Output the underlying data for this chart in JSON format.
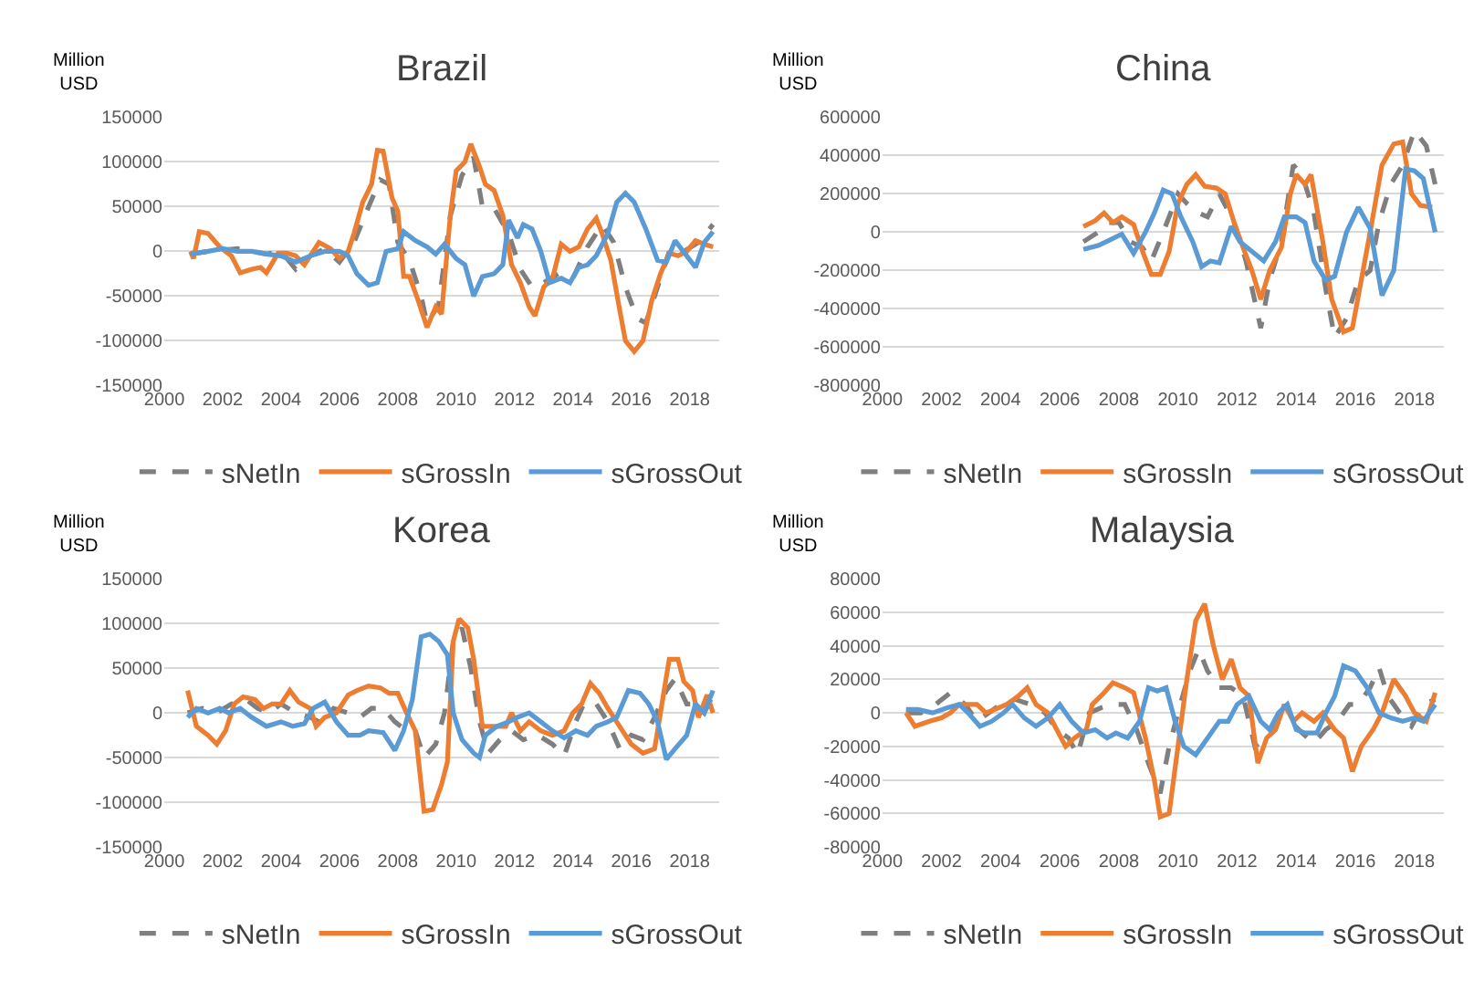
{
  "chart_data": [
    {
      "type": "line",
      "title": "Brazil",
      "ylabel": "Million\nUSD",
      "xlim": [
        2000,
        2019
      ],
      "xticks": [
        2000,
        2002,
        2004,
        2006,
        2008,
        2010,
        2012,
        2014,
        2016,
        2018
      ],
      "ylim": [
        -150000,
        150000
      ],
      "yticks": [
        -150000,
        -100000,
        -50000,
        0,
        50000,
        100000,
        150000
      ],
      "grid": "y",
      "legend": "bottom",
      "series": [
        {
          "name": "sNetIn",
          "color": "#7f7f7f",
          "line_style": "dashed",
          "x": [
            2000.9,
            2001.5,
            2002.5,
            2003.5,
            2004.0,
            2004.5,
            2005.0,
            2005.5,
            2006.0,
            2006.5,
            2007.0,
            2007.4,
            2007.7,
            2008.0,
            2008.4,
            2008.8,
            2009.0,
            2009.4,
            2009.8,
            2010.2,
            2010.6,
            2010.9,
            2011.3,
            2011.8,
            2012.2,
            2012.6,
            2013.0,
            2013.5,
            2014.0,
            2014.5,
            2015.0,
            2015.4,
            2015.8,
            2016.2,
            2016.5,
            2016.9,
            2017.3,
            2017.8,
            2018.3,
            2018.8
          ],
          "values": [
            -3000,
            0,
            3000,
            -3000,
            0,
            -20000,
            -5000,
            3000,
            -12000,
            10000,
            50000,
            80000,
            75000,
            10000,
            -10000,
            -50000,
            -80000,
            -60000,
            40000,
            85000,
            105000,
            50000,
            48000,
            20000,
            -20000,
            -40000,
            -35000,
            -25000,
            -30000,
            5000,
            30000,
            10000,
            -40000,
            -75000,
            -80000,
            -40000,
            0,
            0,
            10000,
            30000
          ]
        },
        {
          "name": "sGrossIn",
          "color": "#ed7d31",
          "line_style": "solid",
          "x": [
            2000.9,
            2001.0,
            2001.2,
            2001.5,
            2001.9,
            2002.3,
            2002.6,
            2003.0,
            2003.3,
            2003.5,
            2003.9,
            2004.2,
            2004.5,
            2004.8,
            2005.0,
            2005.3,
            2005.7,
            2006.0,
            2006.3,
            2006.5,
            2006.8,
            2007.1,
            2007.3,
            2007.5,
            2007.8,
            2008.0,
            2008.2,
            2008.4,
            2008.7,
            2009.0,
            2009.3,
            2009.5,
            2009.8,
            2010.0,
            2010.3,
            2010.5,
            2010.8,
            2011.0,
            2011.3,
            2011.6,
            2011.9,
            2012.2,
            2012.5,
            2012.7,
            2013.0,
            2013.3,
            2013.6,
            2013.9,
            2014.2,
            2014.5,
            2014.8,
            2015.0,
            2015.3,
            2015.6,
            2015.8,
            2016.1,
            2016.4,
            2016.7,
            2017.0,
            2017.3,
            2017.6,
            2017.9,
            2018.2,
            2018.5,
            2018.8
          ],
          "values": [
            0,
            -8000,
            22000,
            20000,
            5000,
            -5000,
            -24000,
            -20000,
            -18000,
            -24000,
            -2000,
            -2000,
            -5000,
            -15000,
            -5000,
            10000,
            3000,
            -8000,
            0,
            20000,
            55000,
            75000,
            113000,
            112000,
            60000,
            45000,
            -28000,
            -28000,
            -55000,
            -85000,
            -62000,
            -70000,
            40000,
            90000,
            100000,
            120000,
            95000,
            75000,
            68000,
            40000,
            -15000,
            -35000,
            -62000,
            -72000,
            -40000,
            -30000,
            8000,
            0,
            5000,
            25000,
            37000,
            20000,
            -10000,
            -65000,
            -100000,
            -112000,
            -100000,
            -55000,
            -25000,
            -2000,
            -5000,
            0,
            12000,
            8000,
            5000
          ]
        },
        {
          "name": "sGrossOut",
          "color": "#5b9bd5",
          "line_style": "solid",
          "x": [
            2000.9,
            2001.5,
            2002.0,
            2002.5,
            2003.0,
            2003.5,
            2004.0,
            2004.5,
            2005.0,
            2005.5,
            2006.0,
            2006.3,
            2006.6,
            2007.0,
            2007.3,
            2007.6,
            2008.0,
            2008.2,
            2008.6,
            2009.0,
            2009.3,
            2009.6,
            2010.0,
            2010.3,
            2010.6,
            2010.9,
            2011.3,
            2011.6,
            2011.8,
            2012.1,
            2012.3,
            2012.6,
            2012.9,
            2013.2,
            2013.6,
            2013.9,
            2014.2,
            2014.5,
            2014.8,
            2015.2,
            2015.5,
            2015.8,
            2016.1,
            2016.5,
            2016.9,
            2017.2,
            2017.5,
            2017.9,
            2018.2,
            2018.5,
            2018.8
          ],
          "values": [
            -3000,
            0,
            3000,
            0,
            0,
            -3000,
            -5000,
            -12000,
            -5000,
            0,
            0,
            -5000,
            -25000,
            -38000,
            -35000,
            0,
            3000,
            22000,
            12000,
            5000,
            -3000,
            8000,
            -8000,
            -15000,
            -50000,
            -28000,
            -25000,
            -15000,
            35000,
            15000,
            30000,
            25000,
            0,
            -35000,
            -30000,
            -35000,
            -18000,
            -15000,
            -5000,
            20000,
            55000,
            65000,
            55000,
            25000,
            -10000,
            -12000,
            12000,
            -5000,
            -18000,
            10000,
            22000
          ]
        }
      ]
    },
    {
      "type": "line",
      "title": "China",
      "ylabel": "Million\nUSD",
      "xlim": [
        2000,
        2019
      ],
      "xticks": [
        2000,
        2002,
        2004,
        2006,
        2008,
        2010,
        2012,
        2014,
        2016,
        2018
      ],
      "ylim": [
        -800000,
        600000
      ],
      "yticks": [
        -800000,
        -600000,
        -400000,
        -200000,
        0,
        200000,
        400000,
        600000
      ],
      "grid": "y",
      "legend": "bottom",
      "series": [
        {
          "name": "sNetIn",
          "color": "#7f7f7f",
          "line_style": "dashed",
          "x": [
            2006.8,
            2007.3,
            2007.6,
            2008.0,
            2008.4,
            2008.8,
            2009.1,
            2009.5,
            2010.0,
            2010.3,
            2010.7,
            2011.0,
            2011.4,
            2011.9,
            2012.3,
            2012.8,
            2013.1,
            2013.5,
            2013.9,
            2014.2,
            2014.6,
            2015.0,
            2015.3,
            2015.7,
            2016.1,
            2016.5,
            2016.8,
            2017.2,
            2017.6,
            2018.0,
            2018.4,
            2018.7
          ],
          "values": [
            -50000,
            0,
            50000,
            50000,
            -50000,
            -80000,
            -150000,
            0,
            200000,
            150000,
            100000,
            80000,
            200000,
            50000,
            -150000,
            -500000,
            -250000,
            -50000,
            350000,
            300000,
            100000,
            -300000,
            -550000,
            -450000,
            -250000,
            -200000,
            50000,
            250000,
            350000,
            530000,
            450000,
            250000
          ]
        },
        {
          "name": "sGrossIn",
          "color": "#ed7d31",
          "line_style": "solid",
          "x": [
            2006.8,
            2007.2,
            2007.5,
            2007.8,
            2008.1,
            2008.5,
            2008.8,
            2009.1,
            2009.4,
            2009.7,
            2010.0,
            2010.3,
            2010.6,
            2010.9,
            2011.3,
            2011.6,
            2011.9,
            2012.2,
            2012.5,
            2012.8,
            2013.1,
            2013.5,
            2013.8,
            2014.0,
            2014.3,
            2014.5,
            2014.9,
            2015.2,
            2015.6,
            2015.9,
            2016.2,
            2016.5,
            2016.9,
            2017.3,
            2017.6,
            2017.9,
            2018.2,
            2018.6
          ],
          "values": [
            30000,
            60000,
            100000,
            50000,
            80000,
            40000,
            -100000,
            -220000,
            -220000,
            -100000,
            150000,
            250000,
            300000,
            240000,
            230000,
            200000,
            50000,
            -80000,
            -200000,
            -350000,
            -200000,
            -80000,
            200000,
            300000,
            250000,
            300000,
            -50000,
            -350000,
            -520000,
            -500000,
            -250000,
            0,
            350000,
            460000,
            470000,
            200000,
            140000,
            130000
          ]
        },
        {
          "name": "sGrossOut",
          "color": "#5b9bd5",
          "line_style": "solid",
          "x": [
            2006.8,
            2007.3,
            2007.7,
            2008.1,
            2008.5,
            2008.9,
            2009.2,
            2009.5,
            2009.8,
            2010.1,
            2010.5,
            2010.8,
            2011.1,
            2011.4,
            2011.8,
            2012.1,
            2012.5,
            2012.9,
            2013.3,
            2013.6,
            2014.0,
            2014.3,
            2014.6,
            2015.0,
            2015.3,
            2015.7,
            2016.1,
            2016.5,
            2016.9,
            2017.3,
            2017.7,
            2018.0,
            2018.3,
            2018.7
          ],
          "values": [
            -90000,
            -70000,
            -40000,
            -10000,
            -110000,
            0,
            100000,
            220000,
            200000,
            80000,
            -50000,
            -180000,
            -150000,
            -160000,
            30000,
            -50000,
            -100000,
            -150000,
            -50000,
            80000,
            80000,
            50000,
            -150000,
            -250000,
            -230000,
            0,
            130000,
            20000,
            -330000,
            -200000,
            330000,
            320000,
            280000,
            0
          ]
        }
      ]
    },
    {
      "type": "line",
      "title": "Korea",
      "ylabel": "Million\nUSD",
      "xlim": [
        2000,
        2019
      ],
      "xticks": [
        2000,
        2002,
        2004,
        2006,
        2008,
        2010,
        2012,
        2014,
        2016,
        2018
      ],
      "ylim": [
        -150000,
        150000
      ],
      "yticks": [
        -150000,
        -100000,
        -50000,
        0,
        50000,
        100000,
        150000
      ],
      "grid": "y",
      "legend": "bottom",
      "series": [
        {
          "name": "sNetIn",
          "color": "#7f7f7f",
          "line_style": "dashed",
          "x": [
            2000.8,
            2001.3,
            2001.8,
            2002.3,
            2002.8,
            2003.2,
            2003.6,
            2004.0,
            2004.5,
            2005.0,
            2005.3,
            2005.8,
            2006.3,
            2006.7,
            2007.1,
            2007.5,
            2007.9,
            2008.3,
            2008.6,
            2008.9,
            2009.3,
            2009.6,
            2009.9,
            2010.2,
            2010.5,
            2010.8,
            2011.1,
            2011.5,
            2011.9,
            2012.3,
            2012.8,
            2013.3,
            2013.7,
            2014.1,
            2014.4,
            2014.8,
            2015.2,
            2015.6,
            2016.0,
            2016.4,
            2016.8,
            2017.2,
            2017.5,
            2017.9,
            2018.2,
            2018.5,
            2018.8
          ],
          "values": [
            0,
            5000,
            0,
            10000,
            15000,
            5000,
            0,
            10000,
            0,
            -5000,
            -10000,
            5000,
            0,
            -5000,
            5000,
            5000,
            -10000,
            -20000,
            -20000,
            -50000,
            -35000,
            0,
            80000,
            95000,
            50000,
            -10000,
            -45000,
            -30000,
            -20000,
            -30000,
            -25000,
            -35000,
            -48000,
            -10000,
            12000,
            10000,
            -10000,
            -40000,
            -25000,
            -30000,
            -5000,
            25000,
            38000,
            10000,
            10000,
            0,
            20000
          ]
        },
        {
          "name": "sGrossIn",
          "color": "#ed7d31",
          "line_style": "solid",
          "x": [
            2000.8,
            2001.1,
            2001.5,
            2001.8,
            2002.1,
            2002.4,
            2002.7,
            2003.1,
            2003.4,
            2003.7,
            2004.0,
            2004.3,
            2004.6,
            2005.0,
            2005.2,
            2005.5,
            2005.9,
            2006.3,
            2006.6,
            2007.0,
            2007.4,
            2007.7,
            2008.0,
            2008.3,
            2008.6,
            2008.9,
            2009.2,
            2009.5,
            2009.7,
            2009.9,
            2010.1,
            2010.4,
            2010.6,
            2010.9,
            2011.3,
            2011.7,
            2011.9,
            2012.2,
            2012.5,
            2012.9,
            2013.3,
            2013.7,
            2014.0,
            2014.3,
            2014.6,
            2014.9,
            2015.2,
            2015.6,
            2016.0,
            2016.4,
            2016.8,
            2017.0,
            2017.3,
            2017.6,
            2017.8,
            2018.1,
            2018.3,
            2018.6,
            2018.8
          ],
          "values": [
            25000,
            -15000,
            -25000,
            -35000,
            -20000,
            10000,
            18000,
            15000,
            5000,
            10000,
            10000,
            25000,
            12000,
            5000,
            -15000,
            -5000,
            0,
            20000,
            25000,
            30000,
            28000,
            22000,
            22000,
            0,
            -20000,
            -110000,
            -108000,
            -80000,
            -55000,
            80000,
            105000,
            95000,
            60000,
            -15000,
            -15000,
            -15000,
            0,
            -20000,
            -10000,
            -20000,
            -25000,
            -20000,
            0,
            10000,
            33000,
            22000,
            5000,
            -15000,
            -35000,
            -45000,
            -40000,
            0,
            60000,
            60000,
            35000,
            25000,
            -5000,
            20000,
            0
          ]
        },
        {
          "name": "sGrossOut",
          "color": "#5b9bd5",
          "line_style": "solid",
          "x": [
            2000.8,
            2001.1,
            2001.5,
            2001.9,
            2002.2,
            2002.6,
            2003.0,
            2003.5,
            2004.0,
            2004.4,
            2004.8,
            2005.1,
            2005.5,
            2005.9,
            2006.3,
            2006.7,
            2007.0,
            2007.5,
            2007.9,
            2008.2,
            2008.5,
            2008.8,
            2009.1,
            2009.4,
            2009.7,
            2009.9,
            2010.2,
            2010.6,
            2010.8,
            2011.0,
            2011.4,
            2011.8,
            2012.1,
            2012.5,
            2012.9,
            2013.3,
            2013.7,
            2014.1,
            2014.5,
            2014.8,
            2015.2,
            2015.5,
            2015.9,
            2016.3,
            2016.6,
            2016.9,
            2017.2,
            2017.5,
            2017.9,
            2018.2,
            2018.5,
            2018.8
          ],
          "values": [
            -5000,
            5000,
            0,
            5000,
            0,
            5000,
            -5000,
            -15000,
            -10000,
            -15000,
            -12000,
            5000,
            12000,
            -10000,
            -25000,
            -25000,
            -20000,
            -22000,
            -42000,
            -20000,
            15000,
            85000,
            88000,
            80000,
            65000,
            0,
            -30000,
            -45000,
            -50000,
            -25000,
            -15000,
            -10000,
            -5000,
            0,
            -10000,
            -20000,
            -28000,
            -20000,
            -25000,
            -15000,
            -10000,
            -5000,
            25000,
            22000,
            10000,
            -10000,
            -52000,
            -40000,
            -25000,
            10000,
            0,
            25000
          ]
        }
      ]
    },
    {
      "type": "line",
      "title": "Malaysia",
      "ylabel": "Million\nUSD",
      "xlim": [
        2000,
        2019
      ],
      "xticks": [
        2000,
        2002,
        2004,
        2006,
        2008,
        2010,
        2012,
        2014,
        2016,
        2018
      ],
      "ylim": [
        -80000,
        80000
      ],
      "yticks": [
        -80000,
        -60000,
        -40000,
        -20000,
        0,
        20000,
        40000,
        60000,
        80000
      ],
      "grid": "y",
      "legend": "bottom",
      "series": [
        {
          "name": "sNetIn",
          "color": "#7f7f7f",
          "line_style": "dashed",
          "x": [
            2000.8,
            2001.3,
            2001.8,
            2002.3,
            2002.8,
            2003.2,
            2003.6,
            2004.0,
            2004.5,
            2005.0,
            2005.5,
            2005.9,
            2006.3,
            2006.6,
            2007.0,
            2007.4,
            2007.8,
            2008.2,
            2008.6,
            2009.0,
            2009.4,
            2009.7,
            2010.0,
            2010.4,
            2010.7,
            2011.0,
            2011.4,
            2011.8,
            2012.2,
            2012.6,
            2013.0,
            2013.4,
            2013.8,
            2014.2,
            2014.6,
            2015.0,
            2015.4,
            2015.8,
            2016.1,
            2016.5,
            2016.8,
            2017.1,
            2017.5,
            2017.9,
            2018.3,
            2018.7
          ],
          "values": [
            0,
            0,
            5000,
            12000,
            5000,
            -5000,
            0,
            5000,
            8000,
            5000,
            0,
            -10000,
            -15000,
            -25000,
            0,
            3000,
            5000,
            5000,
            -10000,
            -30000,
            -48000,
            -20000,
            0,
            25000,
            38000,
            25000,
            15000,
            15000,
            10000,
            -20000,
            -15000,
            -5000,
            -5000,
            -12000,
            -18000,
            -10000,
            -5000,
            5000,
            5000,
            15000,
            27000,
            10000,
            0,
            -8000,
            5000,
            8000
          ]
        },
        {
          "name": "sGrossIn",
          "color": "#ed7d31",
          "line_style": "solid",
          "x": [
            2000.8,
            2001.1,
            2001.6,
            2002.0,
            2002.3,
            2002.6,
            2002.9,
            2003.2,
            2003.5,
            2003.8,
            2004.2,
            2004.6,
            2004.9,
            2005.2,
            2005.6,
            2005.9,
            2006.2,
            2006.5,
            2006.9,
            2007.1,
            2007.5,
            2007.8,
            2008.2,
            2008.5,
            2008.9,
            2009.2,
            2009.4,
            2009.7,
            2010.0,
            2010.3,
            2010.6,
            2010.9,
            2011.2,
            2011.5,
            2011.8,
            2012.1,
            2012.4,
            2012.7,
            2013.0,
            2013.3,
            2013.6,
            2013.9,
            2014.2,
            2014.6,
            2014.9,
            2015.3,
            2015.6,
            2015.9,
            2016.2,
            2016.6,
            2016.9,
            2017.3,
            2017.7,
            2018.0,
            2018.4,
            2018.7
          ],
          "values": [
            0,
            -8000,
            -5000,
            -3000,
            0,
            5000,
            5000,
            5000,
            0,
            2000,
            5000,
            10000,
            15000,
            5000,
            0,
            -10000,
            -20000,
            -15000,
            -10000,
            5000,
            12000,
            18000,
            15000,
            12000,
            -15000,
            -40000,
            -62000,
            -60000,
            -20000,
            20000,
            55000,
            65000,
            40000,
            20000,
            32000,
            15000,
            10000,
            -30000,
            -15000,
            -10000,
            5000,
            -5000,
            0,
            -5000,
            0,
            -10000,
            -15000,
            -35000,
            -20000,
            -10000,
            0,
            20000,
            10000,
            0,
            -5000,
            12000
          ]
        },
        {
          "name": "sGrossOut",
          "color": "#5b9bd5",
          "line_style": "solid",
          "x": [
            2000.8,
            2001.2,
            2001.7,
            2002.2,
            2002.6,
            2002.9,
            2003.3,
            2003.7,
            2004.1,
            2004.4,
            2004.8,
            2005.2,
            2005.6,
            2006.0,
            2006.4,
            2006.8,
            2007.2,
            2007.6,
            2007.9,
            2008.3,
            2008.7,
            2009.0,
            2009.3,
            2009.6,
            2009.9,
            2010.2,
            2010.6,
            2011.0,
            2011.4,
            2011.7,
            2012.0,
            2012.4,
            2012.8,
            2013.1,
            2013.4,
            2013.7,
            2014.0,
            2014.3,
            2014.7,
            2015.0,
            2015.3,
            2015.6,
            2016.0,
            2016.4,
            2016.8,
            2017.2,
            2017.6,
            2018.0,
            2018.3,
            2018.7
          ],
          "values": [
            2000,
            2000,
            0,
            3000,
            5000,
            0,
            -8000,
            -5000,
            0,
            5000,
            -3000,
            -8000,
            -3000,
            5000,
            -5000,
            -12000,
            -10000,
            -15000,
            -12000,
            -15000,
            -5000,
            15000,
            13000,
            15000,
            -5000,
            -20000,
            -25000,
            -15000,
            -5000,
            -5000,
            5000,
            10000,
            -5000,
            -10000,
            0,
            5000,
            -10000,
            -12000,
            -12000,
            0,
            10000,
            28000,
            25000,
            15000,
            0,
            -3000,
            -5000,
            -3000,
            -5000,
            5000
          ]
        }
      ]
    }
  ]
}
